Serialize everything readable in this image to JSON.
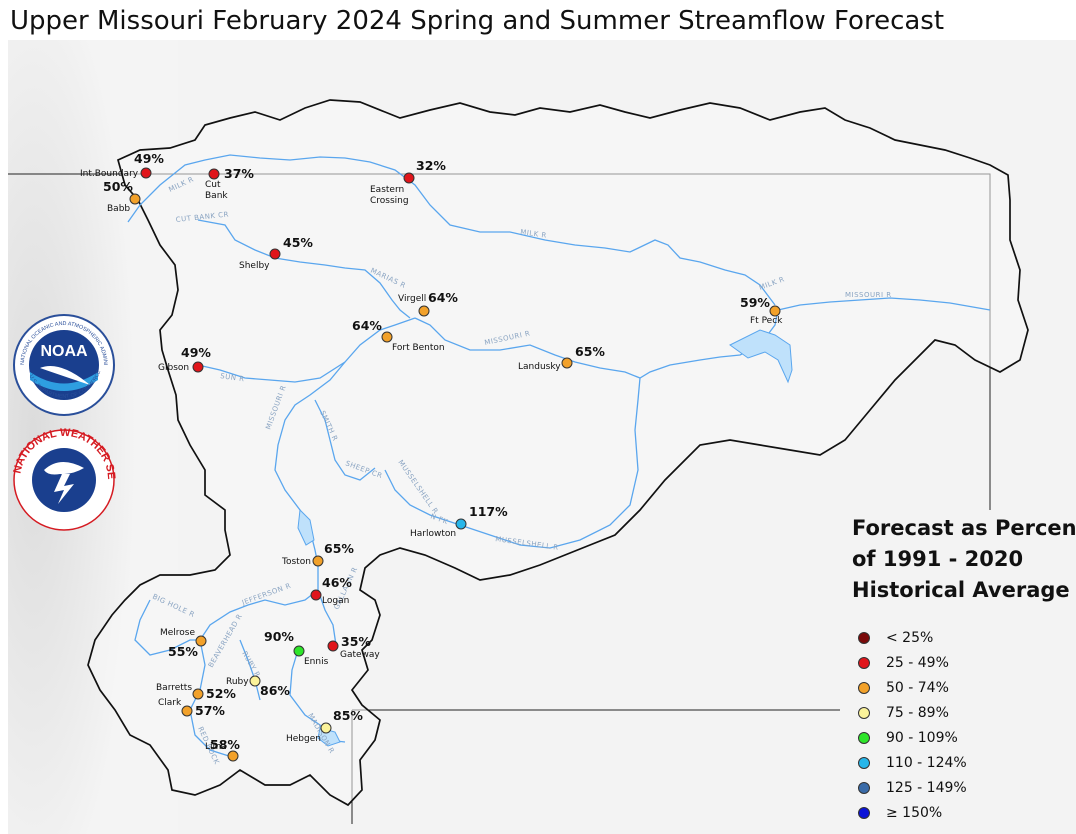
{
  "title": "Upper Missouri February 2024 Spring and Summer Streamflow Forecast",
  "legend": {
    "title_lines": [
      "Forecast as Percent",
      "of 1991 - 2020",
      "Historical Average"
    ],
    "items": [
      {
        "label": "< 25%",
        "color": "#7a0a0a"
      },
      {
        "label": "25 - 49%",
        "color": "#e0151b"
      },
      {
        "label": "50 - 74%",
        "color": "#f2a12a"
      },
      {
        "label": "75 - 89%",
        "color": "#fbf39a"
      },
      {
        "label": "90 - 109%",
        "color": "#2ee52a"
      },
      {
        "label": "110 - 124%",
        "color": "#27b6ea"
      },
      {
        "label": "125 - 149%",
        "color": "#3a6ba8"
      },
      {
        "label": "≥ 150%",
        "color": "#0b12d6"
      }
    ]
  },
  "stations": [
    {
      "name": "Int.Boundary",
      "pct": "49%",
      "color": "#e0151b"
    },
    {
      "name": "Babb",
      "pct": "50%",
      "color": "#f2a12a"
    },
    {
      "name": "Cut Bank",
      "pct": "37%",
      "color": "#e0151b"
    },
    {
      "name": "Eastern Crossing",
      "pct": "32%",
      "color": "#e0151b"
    },
    {
      "name": "Shelby",
      "pct": "45%",
      "color": "#e0151b"
    },
    {
      "name": "Virgell",
      "pct": "64%",
      "color": "#f2a12a"
    },
    {
      "name": "Fort Benton",
      "pct": "64%",
      "color": "#f2a12a"
    },
    {
      "name": "Ft Peck",
      "pct": "59%",
      "color": "#f2a12a"
    },
    {
      "name": "Gibson",
      "pct": "49%",
      "color": "#e0151b"
    },
    {
      "name": "Landusky",
      "pct": "65%",
      "color": "#f2a12a"
    },
    {
      "name": "Harlowton",
      "pct": "117%",
      "color": "#27b6ea"
    },
    {
      "name": "Toston",
      "pct": "65%",
      "color": "#f2a12a"
    },
    {
      "name": "Logan",
      "pct": "46%",
      "color": "#e0151b"
    },
    {
      "name": "Melrose",
      "pct": "55%",
      "color": "#f2a12a"
    },
    {
      "name": "Ennis",
      "pct": "90%",
      "color": "#2ee52a"
    },
    {
      "name": "Gateway",
      "pct": "35%",
      "color": "#e0151b"
    },
    {
      "name": "Barretts",
      "pct": "52%",
      "color": "#f2a12a"
    },
    {
      "name": "Ruby",
      "pct": "86%",
      "color": "#fbf39a"
    },
    {
      "name": "Clark",
      "pct": "57%",
      "color": "#f2a12a"
    },
    {
      "name": "Hebgen",
      "pct": "85%",
      "color": "#fbf39a"
    },
    {
      "name": "Lima",
      "pct": "58%",
      "color": "#f2a12a"
    }
  ],
  "rivers": [
    "MILK R",
    "CUT BANK CR",
    "MARIAS R",
    "MILK R",
    "MILK R",
    "MISSOURI R",
    "MISSOURI R",
    "SUN R",
    "MISSOURI R",
    "SMITH R",
    "SHEEP CR",
    "MUSSELSHELL R",
    "MUSSELSHELL R",
    "N FK",
    "JEFFERSON R",
    "BIG HOLE R",
    "BEAVERHEAD R",
    "RUBY R",
    "MADISON R",
    "GALLATIN R",
    "RED ROCK"
  ],
  "logos": {
    "noaa_word": "NOAA",
    "noaa_ring": "NATIONAL OCEANIC AND ATMOSPHERIC ADMINISTRATION",
    "noaa_ring_bottom": "U.S. DEPARTMENT OF COMMERCE",
    "nws_ring": "NATIONAL WEATHER SERVICE"
  }
}
